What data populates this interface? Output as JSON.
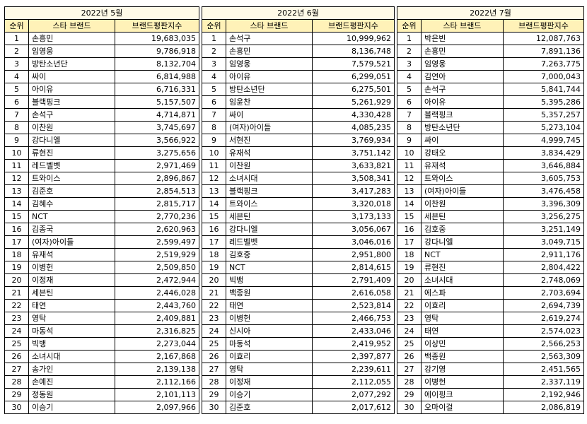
{
  "headers": {
    "rank": "순위",
    "brand": "스타 브랜드",
    "index": "브랜드평판지수"
  },
  "months": [
    {
      "title": "2022년 5월",
      "rows": [
        {
          "rank": "1",
          "name": "손흥민",
          "value": "19,683,035"
        },
        {
          "rank": "2",
          "name": "임영웅",
          "value": "9,786,918"
        },
        {
          "rank": "3",
          "name": "방탄소년단",
          "value": "8,132,704"
        },
        {
          "rank": "4",
          "name": "싸이",
          "value": "6,814,988"
        },
        {
          "rank": "5",
          "name": "아이유",
          "value": "6,716,331"
        },
        {
          "rank": "6",
          "name": "블랙핑크",
          "value": "5,157,507"
        },
        {
          "rank": "7",
          "name": "손석구",
          "value": "4,714,871"
        },
        {
          "rank": "8",
          "name": "이찬원",
          "value": "3,745,697"
        },
        {
          "rank": "9",
          "name": "강다니엘",
          "value": "3,566,922"
        },
        {
          "rank": "10",
          "name": "류현진",
          "value": "3,275,656"
        },
        {
          "rank": "11",
          "name": "레드벨벳",
          "value": "2,971,469"
        },
        {
          "rank": "12",
          "name": "트와이스",
          "value": "2,896,867"
        },
        {
          "rank": "13",
          "name": "김준호",
          "value": "2,854,513"
        },
        {
          "rank": "14",
          "name": "김혜수",
          "value": "2,815,717"
        },
        {
          "rank": "15",
          "name": "NCT",
          "value": "2,770,236"
        },
        {
          "rank": "16",
          "name": "김종국",
          "value": "2,620,963"
        },
        {
          "rank": "17",
          "name": "(여자)아이들",
          "value": "2,599,497"
        },
        {
          "rank": "18",
          "name": "유재석",
          "value": "2,519,929"
        },
        {
          "rank": "19",
          "name": "이병헌",
          "value": "2,509,850"
        },
        {
          "rank": "20",
          "name": "이정재",
          "value": "2,472,944"
        },
        {
          "rank": "21",
          "name": "세븐틴",
          "value": "2,446,028"
        },
        {
          "rank": "22",
          "name": "태연",
          "value": "2,443,760"
        },
        {
          "rank": "23",
          "name": "영탁",
          "value": "2,409,881"
        },
        {
          "rank": "24",
          "name": "마동석",
          "value": "2,316,825"
        },
        {
          "rank": "25",
          "name": "빅뱅",
          "value": "2,273,044"
        },
        {
          "rank": "26",
          "name": "소녀시대",
          "value": "2,167,868"
        },
        {
          "rank": "27",
          "name": "송가인",
          "value": "2,139,138"
        },
        {
          "rank": "28",
          "name": "손예진",
          "value": "2,112,166"
        },
        {
          "rank": "29",
          "name": "정동원",
          "value": "2,101,113"
        },
        {
          "rank": "30",
          "name": "이승기",
          "value": "2,097,966"
        }
      ]
    },
    {
      "title": "2022년 6월",
      "rows": [
        {
          "rank": "1",
          "name": "손석구",
          "value": "10,999,962"
        },
        {
          "rank": "2",
          "name": "손흥민",
          "value": "8,136,748"
        },
        {
          "rank": "3",
          "name": "임영웅",
          "value": "7,579,521"
        },
        {
          "rank": "4",
          "name": "아이유",
          "value": "6,299,051"
        },
        {
          "rank": "5",
          "name": "방탄소년단",
          "value": "6,275,501"
        },
        {
          "rank": "6",
          "name": "임윤찬",
          "value": "5,261,929"
        },
        {
          "rank": "7",
          "name": "싸이",
          "value": "4,330,428"
        },
        {
          "rank": "8",
          "name": "(여자)아이들",
          "value": "4,085,235"
        },
        {
          "rank": "9",
          "name": "서현진",
          "value": "3,769,934"
        },
        {
          "rank": "10",
          "name": "유재석",
          "value": "3,751,142"
        },
        {
          "rank": "11",
          "name": "이찬원",
          "value": "3,633,821"
        },
        {
          "rank": "12",
          "name": "소녀시대",
          "value": "3,508,341"
        },
        {
          "rank": "13",
          "name": "블랙핑크",
          "value": "3,417,283"
        },
        {
          "rank": "14",
          "name": "트와이스",
          "value": "3,320,018"
        },
        {
          "rank": "15",
          "name": "세븐틴",
          "value": "3,173,133"
        },
        {
          "rank": "16",
          "name": "강다니엘",
          "value": "3,056,067"
        },
        {
          "rank": "17",
          "name": "레드벨벳",
          "value": "3,046,016"
        },
        {
          "rank": "18",
          "name": "김호중",
          "value": "2,951,800"
        },
        {
          "rank": "19",
          "name": "NCT",
          "value": "2,814,615"
        },
        {
          "rank": "20",
          "name": "빅뱅",
          "value": "2,791,409"
        },
        {
          "rank": "21",
          "name": "백종원",
          "value": "2,616,058"
        },
        {
          "rank": "22",
          "name": "태연",
          "value": "2,523,814"
        },
        {
          "rank": "23",
          "name": "이병헌",
          "value": "2,466,753"
        },
        {
          "rank": "24",
          "name": "신시아",
          "value": "2,433,046"
        },
        {
          "rank": "25",
          "name": "마동석",
          "value": "2,419,952"
        },
        {
          "rank": "26",
          "name": "이효리",
          "value": "2,397,877"
        },
        {
          "rank": "27",
          "name": "영탁",
          "value": "2,239,611"
        },
        {
          "rank": "28",
          "name": "이정재",
          "value": "2,112,055"
        },
        {
          "rank": "29",
          "name": "이승기",
          "value": "2,077,292"
        },
        {
          "rank": "30",
          "name": "김준호",
          "value": "2,017,612"
        }
      ]
    },
    {
      "title": "2022년 7월",
      "rows": [
        {
          "rank": "1",
          "name": "박은빈",
          "value": "12,087,763"
        },
        {
          "rank": "2",
          "name": "손흥민",
          "value": "7,891,136"
        },
        {
          "rank": "3",
          "name": "임영웅",
          "value": "7,263,775"
        },
        {
          "rank": "4",
          "name": "김연아",
          "value": "7,000,043"
        },
        {
          "rank": "5",
          "name": "손석구",
          "value": "5,841,744"
        },
        {
          "rank": "6",
          "name": "아이유",
          "value": "5,395,286"
        },
        {
          "rank": "7",
          "name": "블랙핑크",
          "value": "5,357,257"
        },
        {
          "rank": "8",
          "name": "방탄소년단",
          "value": "5,273,104"
        },
        {
          "rank": "9",
          "name": "싸이",
          "value": "4,999,745"
        },
        {
          "rank": "10",
          "name": "강태오",
          "value": "3,834,429"
        },
        {
          "rank": "11",
          "name": "유재석",
          "value": "3,646,884"
        },
        {
          "rank": "12",
          "name": "트와이스",
          "value": "3,605,753"
        },
        {
          "rank": "13",
          "name": "(여자)아이들",
          "value": "3,476,458"
        },
        {
          "rank": "14",
          "name": "이찬원",
          "value": "3,396,309"
        },
        {
          "rank": "15",
          "name": "세븐틴",
          "value": "3,256,275"
        },
        {
          "rank": "16",
          "name": "김호중",
          "value": "3,251,149"
        },
        {
          "rank": "17",
          "name": "강다니엘",
          "value": "3,049,715"
        },
        {
          "rank": "18",
          "name": "NCT",
          "value": "2,911,176"
        },
        {
          "rank": "19",
          "name": "류현진",
          "value": "2,804,422"
        },
        {
          "rank": "20",
          "name": "소녀시대",
          "value": "2,748,069"
        },
        {
          "rank": "21",
          "name": "에스파",
          "value": "2,703,694"
        },
        {
          "rank": "22",
          "name": "이효리",
          "value": "2,694,739"
        },
        {
          "rank": "23",
          "name": "영탁",
          "value": "2,619,274"
        },
        {
          "rank": "24",
          "name": "태연",
          "value": "2,574,023"
        },
        {
          "rank": "25",
          "name": "이상민",
          "value": "2,566,253"
        },
        {
          "rank": "26",
          "name": "백종원",
          "value": "2,563,309"
        },
        {
          "rank": "27",
          "name": "강기영",
          "value": "2,451,565"
        },
        {
          "rank": "28",
          "name": "이병헌",
          "value": "2,337,119"
        },
        {
          "rank": "29",
          "name": "에이핑크",
          "value": "2,192,946"
        },
        {
          "rank": "30",
          "name": "오마이걸",
          "value": "2,086,819"
        }
      ]
    }
  ]
}
